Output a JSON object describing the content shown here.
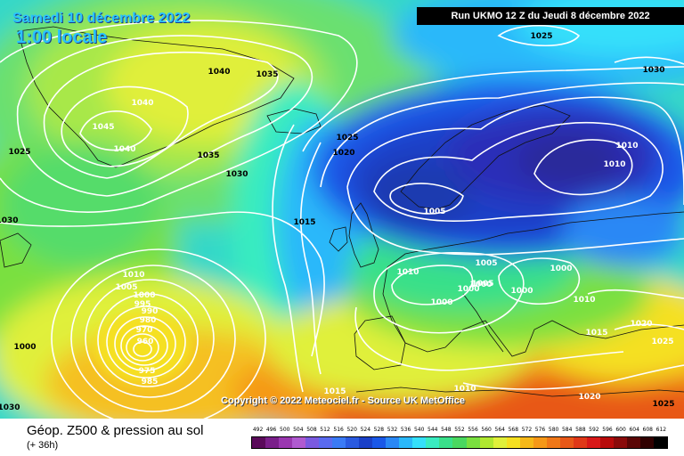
{
  "header": {
    "date": "Samedi 10 décembre 2022",
    "time": "1:00 locale",
    "run": "Run UKMO 12 Z du Jeudi 8 décembre 2022"
  },
  "copyright": "Copyright © 2022 Meteociel.fr - Source UK MetOffice",
  "footer": {
    "title": "Géop. Z500 & pression au sol",
    "subtitle": "(+ 36h)"
  },
  "colors": {
    "land_outline": "#111111",
    "isobar": "#ffffff",
    "header_text": "#29c3ff"
  },
  "isobar_labels": [
    "1025",
    "1040",
    "1035",
    "1040",
    "1045",
    "1040",
    "1035",
    "1030",
    "1025",
    "1020",
    "1025",
    "1030",
    "1015",
    "1010",
    "1005",
    "1000",
    "995",
    "990",
    "980",
    "970",
    "960",
    "975",
    "985",
    "1000",
    "1010",
    "1005",
    "1000",
    "1000",
    "1000",
    "1000",
    "1005",
    "1010",
    "1000",
    "1010",
    "1015",
    "1020",
    "1025",
    "1010",
    "1015",
    "1020",
    "1030",
    "1010",
    "1005",
    "1025",
    "1030"
  ],
  "scale": {
    "labels": [
      "492",
      "496",
      "500",
      "504",
      "508",
      "512",
      "516",
      "520",
      "524",
      "528",
      "532",
      "536",
      "540",
      "544",
      "548",
      "552",
      "556",
      "560",
      "564",
      "568",
      "572",
      "576",
      "580",
      "584",
      "588",
      "592",
      "596",
      "600",
      "604",
      "608",
      "612"
    ],
    "colors": [
      "#5a0a5a",
      "#7a1f8a",
      "#9a37b0",
      "#b05ad0",
      "#7a5ae0",
      "#5a6af0",
      "#3a7af5",
      "#2a5ae0",
      "#1a40c8",
      "#1a58e8",
      "#2a88f5",
      "#2ab8fa",
      "#35e0fa",
      "#39ecc0",
      "#39e08a",
      "#4ad860",
      "#7ae040",
      "#b0e830",
      "#e0f03a",
      "#f5e020",
      "#f5b818",
      "#f59818",
      "#f07818",
      "#e85818",
      "#e03818",
      "#d81818",
      "#b80a0a",
      "#8a0a0a",
      "#5a0505",
      "#300000",
      "#000000"
    ]
  }
}
